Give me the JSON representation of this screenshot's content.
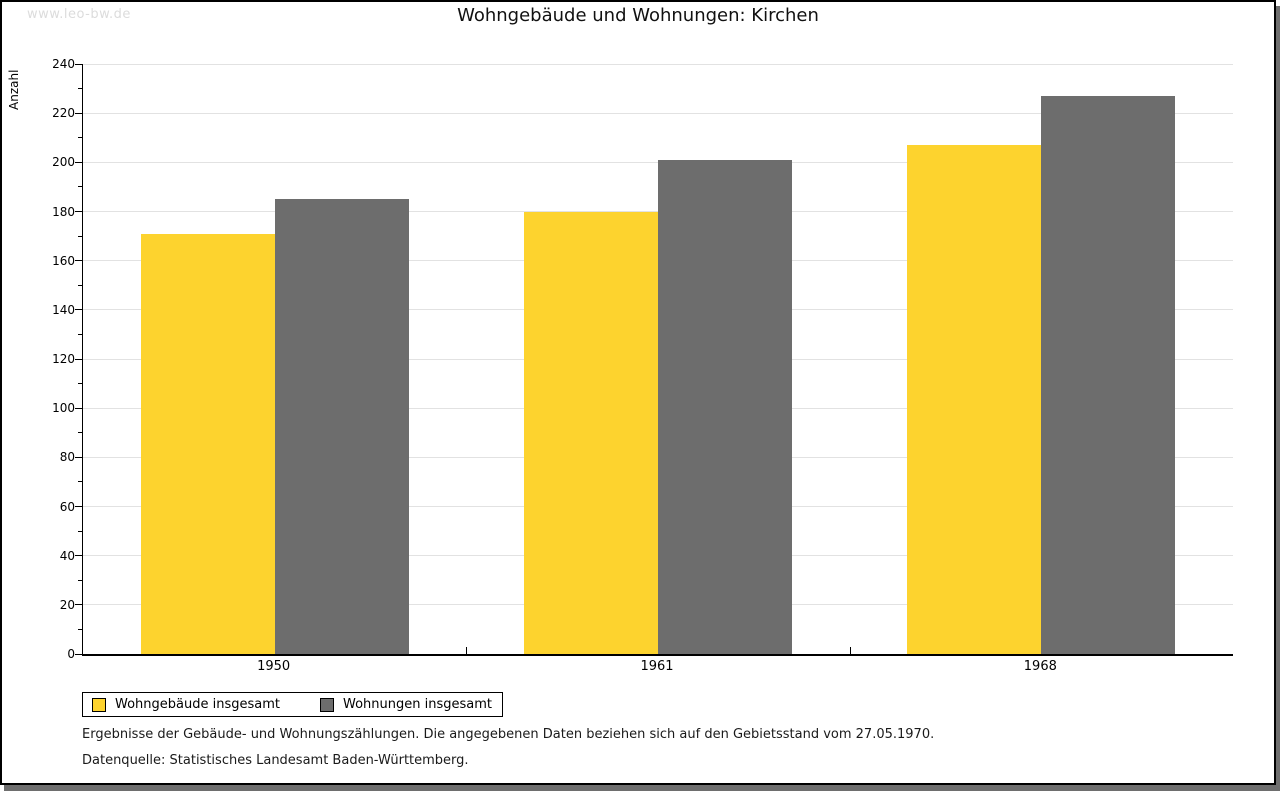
{
  "watermark": "www.leo-bw.de",
  "title": "Wohngebäude und Wohnungen: Kirchen",
  "chart_data": {
    "type": "bar",
    "categories": [
      "1950",
      "1961",
      "1968"
    ],
    "series": [
      {
        "name": "Wohngebäude insgesamt",
        "color": "#fdd32e",
        "values": [
          171,
          180,
          207
        ]
      },
      {
        "name": "Wohnungen insgesamt",
        "color": "#6d6d6d",
        "values": [
          185,
          201,
          227
        ]
      }
    ],
    "title": "Wohngebäude und Wohnungen: Kirchen",
    "xlabel": "",
    "ylabel": "Anzahl",
    "ylim": [
      0,
      240
    ],
    "y_major_step": 20,
    "y_minor_step": 10,
    "grid": true,
    "legend_position": "bottom-left",
    "gridline_color": "#e2e2e2"
  },
  "footer": {
    "line1": "Ergebnisse der Gebäude- und Wohnungszählungen. Die angegebenen Daten beziehen sich auf den Gebietsstand vom 27.05.1970.",
    "line2": "Datenquelle: Statistisches Landesamt Baden-Württemberg."
  }
}
